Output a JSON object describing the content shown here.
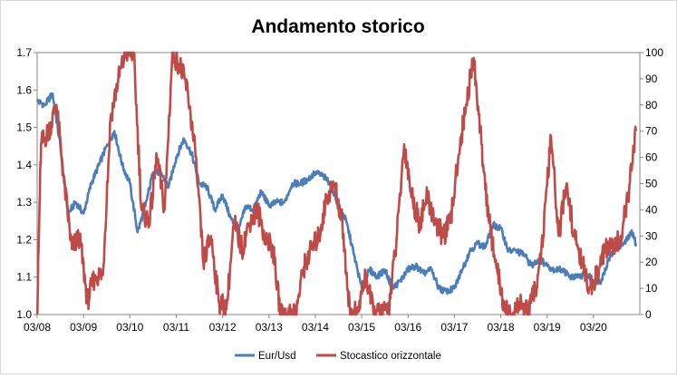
{
  "chart_data": {
    "type": "line",
    "title": "Andamento storico",
    "xlabel": "",
    "ylabel": "",
    "x_ticks": [
      "03/08",
      "03/09",
      "03/10",
      "03/11",
      "03/12",
      "03/13",
      "03/14",
      "03/15",
      "03/16",
      "03/17",
      "03/18",
      "03/19",
      "03/20"
    ],
    "y_left": {
      "range": [
        1.0,
        1.7
      ],
      "ticks": [
        "1.0",
        "1.1",
        "1.2",
        "1.3",
        "1.4",
        "1.5",
        "1.6",
        "1.7"
      ]
    },
    "y_right": {
      "range": [
        0,
        100
      ],
      "ticks": [
        "0",
        "10",
        "20",
        "30",
        "40",
        "50",
        "60",
        "70",
        "80",
        "90",
        "100"
      ]
    },
    "grid": false,
    "legend_position": "bottom",
    "series": [
      {
        "name": "Eur/Usd",
        "axis": "left",
        "color": "#4a7ebb",
        "points": [
          [
            "03/08",
            1.57
          ],
          [
            "05/08",
            1.56
          ],
          [
            "07/08",
            1.59
          ],
          [
            "09/08",
            1.45
          ],
          [
            "11/08",
            1.27
          ],
          [
            "01/09",
            1.3
          ],
          [
            "03/09",
            1.27
          ],
          [
            "05/09",
            1.35
          ],
          [
            "07/09",
            1.4
          ],
          [
            "09/09",
            1.45
          ],
          [
            "11/09",
            1.49
          ],
          [
            "01/10",
            1.4
          ],
          [
            "03/10",
            1.35
          ],
          [
            "05/10",
            1.22
          ],
          [
            "07/10",
            1.29
          ],
          [
            "09/10",
            1.38
          ],
          [
            "11/10",
            1.38
          ],
          [
            "01/11",
            1.34
          ],
          [
            "03/11",
            1.42
          ],
          [
            "05/11",
            1.47
          ],
          [
            "07/11",
            1.43
          ],
          [
            "09/11",
            1.35
          ],
          [
            "11/11",
            1.34
          ],
          [
            "01/12",
            1.28
          ],
          [
            "03/12",
            1.32
          ],
          [
            "05/12",
            1.26
          ],
          [
            "07/12",
            1.22
          ],
          [
            "09/12",
            1.29
          ],
          [
            "11/12",
            1.28
          ],
          [
            "01/13",
            1.33
          ],
          [
            "03/13",
            1.29
          ],
          [
            "05/13",
            1.3
          ],
          [
            "07/13",
            1.3
          ],
          [
            "09/13",
            1.35
          ],
          [
            "11/13",
            1.35
          ],
          [
            "01/14",
            1.36
          ],
          [
            "03/14",
            1.38
          ],
          [
            "05/14",
            1.37
          ],
          [
            "07/14",
            1.35
          ],
          [
            "09/14",
            1.29
          ],
          [
            "11/14",
            1.25
          ],
          [
            "01/15",
            1.16
          ],
          [
            "03/15",
            1.07
          ],
          [
            "05/15",
            1.12
          ],
          [
            "07/15",
            1.1
          ],
          [
            "09/15",
            1.12
          ],
          [
            "11/15",
            1.07
          ],
          [
            "01/16",
            1.09
          ],
          [
            "03/16",
            1.12
          ],
          [
            "05/16",
            1.13
          ],
          [
            "07/16",
            1.11
          ],
          [
            "09/16",
            1.12
          ],
          [
            "11/16",
            1.07
          ],
          [
            "01/17",
            1.06
          ],
          [
            "03/17",
            1.07
          ],
          [
            "05/17",
            1.12
          ],
          [
            "07/17",
            1.17
          ],
          [
            "09/17",
            1.19
          ],
          [
            "11/17",
            1.18
          ],
          [
            "01/18",
            1.24
          ],
          [
            "03/18",
            1.23
          ],
          [
            "05/18",
            1.17
          ],
          [
            "07/18",
            1.17
          ],
          [
            "09/18",
            1.16
          ],
          [
            "11/18",
            1.13
          ],
          [
            "01/19",
            1.15
          ],
          [
            "03/19",
            1.13
          ],
          [
            "05/19",
            1.12
          ],
          [
            "07/19",
            1.12
          ],
          [
            "09/19",
            1.1
          ],
          [
            "11/19",
            1.1
          ],
          [
            "01/20",
            1.11
          ],
          [
            "03/20",
            1.09
          ],
          [
            "05/20",
            1.09
          ],
          [
            "07/20",
            1.15
          ],
          [
            "09/20",
            1.18
          ],
          [
            "11/20",
            1.19
          ],
          [
            "01/21",
            1.22
          ],
          [
            "02/21",
            1.19
          ]
        ]
      },
      {
        "name": "Stocastico orizzontale",
        "axis": "right",
        "color": "#be4b48",
        "points": [
          [
            "03/08",
            0
          ],
          [
            "04/08",
            65
          ],
          [
            "06/08",
            70
          ],
          [
            "08/08",
            80
          ],
          [
            "10/08",
            50
          ],
          [
            "12/08",
            25
          ],
          [
            "02/09",
            30
          ],
          [
            "04/09",
            5
          ],
          [
            "06/09",
            15
          ],
          [
            "08/09",
            15
          ],
          [
            "10/09",
            75
          ],
          [
            "12/09",
            90
          ],
          [
            "02/10",
            100
          ],
          [
            "04/10",
            100
          ],
          [
            "06/10",
            40
          ],
          [
            "08/10",
            35
          ],
          [
            "10/10",
            60
          ],
          [
            "12/10",
            40
          ],
          [
            "02/11",
            100
          ],
          [
            "04/11",
            95
          ],
          [
            "06/11",
            85
          ],
          [
            "08/11",
            60
          ],
          [
            "10/11",
            20
          ],
          [
            "12/11",
            30
          ],
          [
            "02/12",
            5
          ],
          [
            "04/12",
            2
          ],
          [
            "06/12",
            35
          ],
          [
            "08/12",
            25
          ],
          [
            "10/12",
            35
          ],
          [
            "12/12",
            40
          ],
          [
            "02/13",
            30
          ],
          [
            "04/13",
            25
          ],
          [
            "06/13",
            0
          ],
          [
            "08/13",
            0
          ],
          [
            "10/13",
            1
          ],
          [
            "12/13",
            18
          ],
          [
            "02/14",
            25
          ],
          [
            "04/14",
            30
          ],
          [
            "06/14",
            45
          ],
          [
            "08/14",
            50
          ],
          [
            "10/14",
            35
          ],
          [
            "12/14",
            0
          ],
          [
            "02/15",
            1
          ],
          [
            "04/15",
            15
          ],
          [
            "06/15",
            1
          ],
          [
            "08/15",
            0
          ],
          [
            "10/15",
            2
          ],
          [
            "12/15",
            28
          ],
          [
            "02/16",
            65
          ],
          [
            "04/16",
            45
          ],
          [
            "06/16",
            35
          ],
          [
            "08/16",
            45
          ],
          [
            "10/16",
            35
          ],
          [
            "12/16",
            30
          ],
          [
            "02/17",
            35
          ],
          [
            "04/17",
            60
          ],
          [
            "06/17",
            80
          ],
          [
            "08/17",
            98
          ],
          [
            "10/17",
            65
          ],
          [
            "12/17",
            35
          ],
          [
            "02/18",
            18
          ],
          [
            "04/18",
            1
          ],
          [
            "06/18",
            0
          ],
          [
            "08/18",
            5
          ],
          [
            "10/18",
            0
          ],
          [
            "12/18",
            10
          ],
          [
            "02/19",
            30
          ],
          [
            "04/19",
            68
          ],
          [
            "06/19",
            30
          ],
          [
            "08/19",
            50
          ],
          [
            "10/19",
            30
          ],
          [
            "12/19",
            20
          ],
          [
            "02/20",
            10
          ],
          [
            "04/20",
            15
          ],
          [
            "06/20",
            25
          ],
          [
            "08/20",
            25
          ],
          [
            "10/20",
            30
          ],
          [
            "12/20",
            45
          ],
          [
            "02/21",
            70
          ]
        ]
      }
    ]
  }
}
